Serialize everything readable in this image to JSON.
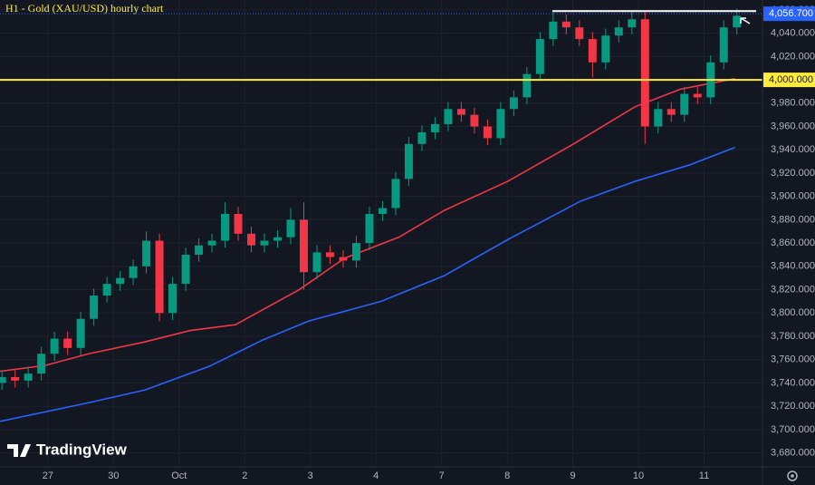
{
  "chart_data": {
    "type": "candlestick",
    "title": "H1 - Gold (XAU/USD) hourly chart",
    "brand": "TradingView",
    "xlim": [
      -0.73,
      10.89
    ],
    "xticks": [
      {
        "value": 0,
        "label": "27"
      },
      {
        "value": 1,
        "label": "30"
      },
      {
        "value": 2,
        "label": "Oct"
      },
      {
        "value": 3,
        "label": "2"
      },
      {
        "value": 4,
        "label": "3"
      },
      {
        "value": 5,
        "label": "4"
      },
      {
        "value": 6,
        "label": "7"
      },
      {
        "value": 7,
        "label": "8"
      },
      {
        "value": 8,
        "label": "9"
      },
      {
        "value": 9,
        "label": "10"
      },
      {
        "value": 10,
        "label": "11"
      }
    ],
    "ylim": [
      3668,
      4068.5
    ],
    "yticks": [
      {
        "value": 3680,
        "label": "3,680.000"
      },
      {
        "value": 3700,
        "label": "3,700.000"
      },
      {
        "value": 3720,
        "label": "3,720.000"
      },
      {
        "value": 3740,
        "label": "3,740.000"
      },
      {
        "value": 3760,
        "label": "3,760.000"
      },
      {
        "value": 3780,
        "label": "3,780.000"
      },
      {
        "value": 3800,
        "label": "3,800.000"
      },
      {
        "value": 3820,
        "label": "3,820.000"
      },
      {
        "value": 3840,
        "label": "3,840.000"
      },
      {
        "value": 3860,
        "label": "3,860.000"
      },
      {
        "value": 3880,
        "label": "3,880.000"
      },
      {
        "value": 3900,
        "label": "3,900.000"
      },
      {
        "value": 3920,
        "label": "3,920.000"
      },
      {
        "value": 3940,
        "label": "3,940.000"
      },
      {
        "value": 3960,
        "label": "3,960.000"
      },
      {
        "value": 3980,
        "label": "3,980.000"
      },
      {
        "value": 4000,
        "label": "4,000.000"
      },
      {
        "value": 4020,
        "label": "4,020.000"
      },
      {
        "value": 4040,
        "label": "4,040.000"
      },
      {
        "value": 4060,
        "label": "4,060.000"
      }
    ],
    "grid": true,
    "up_color": "#089981",
    "down_color": "#f23645",
    "x": [
      -0.7,
      -0.5,
      -0.3,
      -0.1,
      0.1,
      0.3,
      0.5,
      0.7,
      0.9,
      1.1,
      1.3,
      1.5,
      1.7,
      1.9,
      2.1,
      2.3,
      2.5,
      2.7,
      2.9,
      3.1,
      3.3,
      3.5,
      3.7,
      3.9,
      4.1,
      4.3,
      4.5,
      4.7,
      4.9,
      5.1,
      5.3,
      5.5,
      5.7,
      5.9,
      6.1,
      6.3,
      6.5,
      6.7,
      6.9,
      7.1,
      7.3,
      7.5,
      7.7,
      7.9,
      8.1,
      8.3,
      8.5,
      8.7,
      8.9,
      9.1,
      9.3,
      9.5,
      9.7,
      9.9,
      10.1,
      10.3,
      10.5
    ],
    "open": [
      3740,
      3745,
      3742,
      3748,
      3765,
      3778,
      3770,
      3795,
      3815,
      3825,
      3830,
      3840,
      3862,
      3800,
      3825,
      3850,
      3858,
      3862,
      3885,
      3868,
      3858,
      3862,
      3865,
      3880,
      3835,
      3852,
      3848,
      3845,
      3860,
      3885,
      3890,
      3915,
      3945,
      3955,
      3962,
      3975,
      3970,
      3960,
      3950,
      3975,
      3985,
      4005,
      4035,
      4050,
      4045,
      4035,
      4015,
      4038,
      4045,
      4052,
      3960,
      3975,
      3970,
      3988,
      3985,
      4015,
      4045
    ],
    "high": [
      3751,
      3751,
      3754,
      3771,
      3784,
      3784,
      3801,
      3821,
      3831,
      3836,
      3846,
      3870,
      3868,
      3831,
      3856,
      3864,
      3868,
      3895,
      3891,
      3874,
      3868,
      3871,
      3890,
      3895,
      3858,
      3858,
      3854,
      3866,
      3891,
      3896,
      3921,
      3951,
      3961,
      3968,
      3981,
      3981,
      3976,
      3966,
      3981,
      3991,
      4011,
      4041,
      4058,
      4056,
      4051,
      4041,
      4044,
      4051,
      4058,
      4058,
      3981,
      3981,
      3994,
      3994,
      4021,
      4051,
      4061
    ],
    "low": [
      3734,
      3736,
      3736,
      3742,
      3759,
      3764,
      3764,
      3789,
      3809,
      3819,
      3824,
      3834,
      3793,
      3794,
      3819,
      3844,
      3852,
      3856,
      3862,
      3852,
      3852,
      3856,
      3859,
      3820,
      3829,
      3842,
      3839,
      3839,
      3854,
      3879,
      3884,
      3909,
      3939,
      3949,
      3956,
      3964,
      3954,
      3944,
      3944,
      3969,
      3979,
      3999,
      4029,
      4039,
      4029,
      4002,
      4009,
      4032,
      4039,
      3945,
      3954,
      3964,
      3964,
      3979,
      3979,
      4009,
      4039
    ],
    "close": [
      3745,
      3742,
      3748,
      3765,
      3778,
      3770,
      3795,
      3815,
      3825,
      3830,
      3840,
      3862,
      3800,
      3825,
      3850,
      3858,
      3862,
      3885,
      3868,
      3858,
      3862,
      3865,
      3880,
      3835,
      3852,
      3848,
      3845,
      3860,
      3885,
      3890,
      3915,
      3945,
      3955,
      3962,
      3975,
      3970,
      3960,
      3950,
      3975,
      3985,
      4005,
      4035,
      4050,
      4045,
      4035,
      4015,
      4038,
      4045,
      4052,
      3960,
      3975,
      3970,
      3988,
      3985,
      4015,
      4045,
      4055
    ],
    "series": [
      {
        "color": "#f23645",
        "x": [
          -0.73,
          -0.04,
          0.62,
          1.46,
          2.17,
          2.86,
          3.83,
          4.52,
          5.35,
          6.04,
          7.01,
          7.98,
          8.95,
          9.64,
          10.47
        ],
        "values": [
          3750,
          3755,
          3765,
          3775,
          3785,
          3790,
          3820,
          3847,
          3865,
          3888,
          3913,
          3944,
          3977,
          3992,
          4001
        ]
      },
      {
        "color": "#2962ff",
        "x": [
          -0.73,
          0.62,
          1.48,
          2.45,
          3.28,
          3.97,
          5.08,
          6.04,
          7.01,
          8.12,
          8.95,
          9.78,
          10.47
        ],
        "values": [
          3707,
          3723,
          3734,
          3754,
          3777,
          3793,
          3810,
          3832,
          3863,
          3896,
          3913,
          3927,
          3942
        ]
      }
    ],
    "level": 4000,
    "level_label": "4,000.000",
    "level_color": "#ffeb3b",
    "resistance": 4059,
    "last_price": 4056.7,
    "last_label": "4,056.700",
    "last_color": "#2962ff"
  }
}
